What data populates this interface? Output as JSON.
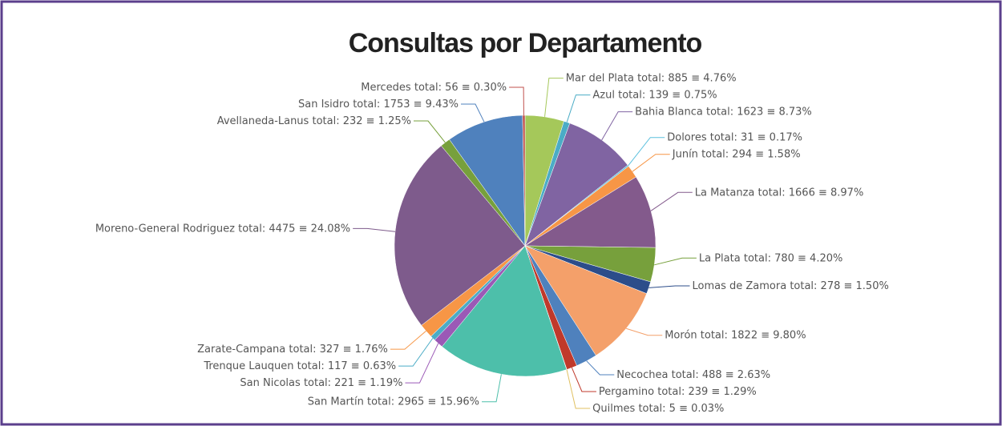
{
  "chart_data": {
    "type": "pie",
    "title": "Consultas por Departamento",
    "categories": [
      "Mar del Plata",
      "Azul",
      "Bahia Blanca",
      "Dolores",
      "Junín",
      "La Matanza",
      "La Plata",
      "Lomas de Zamora",
      "Morón",
      "Necochea",
      "Pergamino",
      "Quilmes",
      "San Martín",
      "San Nicolas",
      "Trenque Lauquen",
      "Zarate-Campana",
      "Moreno-General Rodriguez",
      "Avellaneda-Lanus",
      "San Isidro",
      "Mercedes"
    ],
    "values": [
      885,
      139,
      1623,
      31,
      294,
      1666,
      780,
      278,
      1822,
      488,
      239,
      5,
      2965,
      221,
      117,
      327,
      4475,
      232,
      1753,
      56
    ],
    "value_labels": [
      "total: 885 ≡ 4.76%",
      "total: 139 ≡ 0.75%",
      "total: 1623 ≡ 8.73%",
      "total: 31 ≡ 0.17%",
      "total: 294 ≡ 1.58%",
      "total: 1666 ≡ 8.97%",
      "total: 780 ≡ 4.20%",
      "total: 278 ≡ 1.50%",
      "total: 1822 ≡ 9.80%",
      "total: 488 ≡ 2.63%",
      "total: 239 ≡ 1.29%",
      "total: 5 ≡ 0.03%",
      "total: 2965 ≡ 15.96%",
      "total: 221 ≡ 1.19%",
      "total: 117 ≡ 0.63%",
      "total: 327 ≡ 1.76%",
      "total: 4475 ≡ 24.08%",
      "total: 232 ≡ 1.25%",
      "total: 1753 ≡ 9.43%",
      "total: 56 ≡ 0.30%"
    ],
    "colors": [
      "#a5c85a",
      "#4bacc6",
      "#8064a2",
      "#5bc0de",
      "#f79646",
      "#835a8c",
      "#77a03c",
      "#2c4d8a",
      "#f4a06a",
      "#4f81bd",
      "#c0392b",
      "#e0c060",
      "#4dbfaa",
      "#9b59b6",
      "#4bacc6",
      "#f79646",
      "#7e5b8c",
      "#77a03c",
      "#4f81bd",
      "#c0504d"
    ]
  }
}
